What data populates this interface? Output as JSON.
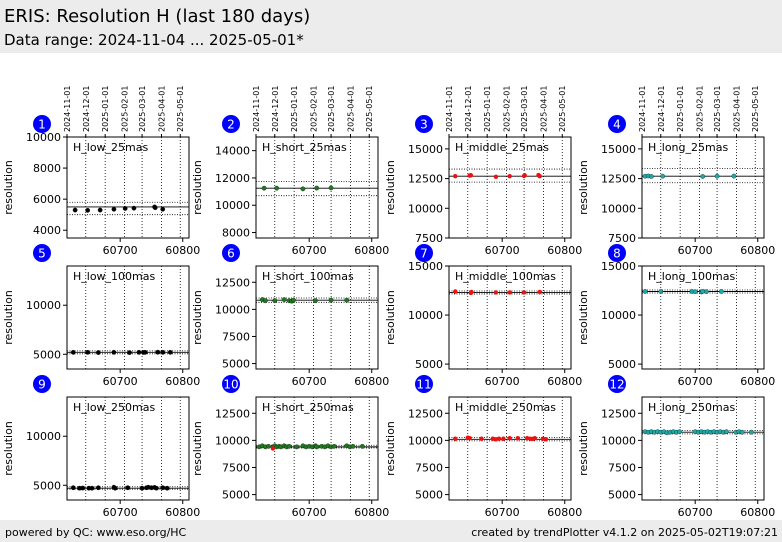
{
  "header": {
    "title": "ERIS: Resolution H (last 180 days)",
    "subtitle": "Data range: 2024-11-04 ... 2025-05-01*"
  },
  "footer": {
    "left": "powered by QC: www.eso.org/HC",
    "right": "created by trendPlotter v4.1.2 on 2025-05-02T19:07:21"
  },
  "colors": {
    "badge": "#0000ff",
    "black": "#000000",
    "green": "#1f7a1f",
    "red": "#ee1111",
    "teal": "#20a8a8"
  },
  "chart_data": {
    "type": "scatter",
    "shared_x": {
      "xlim": [
        60615,
        60810
      ],
      "xticks": [
        60700,
        60800
      ],
      "top_date_ticks": [
        "2024-11-01",
        "2024-12-01",
        "2025-01-01",
        "2025-02-01",
        "2025-03-01",
        "2025-04-01",
        "2025-05-01"
      ],
      "top_date_mjd": [
        60615,
        60645,
        60676,
        60707,
        60735,
        60766,
        60796
      ],
      "vlines": [
        60645,
        60676,
        60707,
        60735,
        60766,
        60796
      ]
    },
    "ylabel": "resolution",
    "panels": [
      {
        "id": "1",
        "label": "H_low_25mas",
        "ylim": [
          3500,
          10000
        ],
        "yticks": [
          4000,
          6000,
          8000,
          10000
        ],
        "median": 5500,
        "band": [
          5000,
          5800
        ],
        "series_color": "black",
        "points": [
          [
            60628,
            5300
          ],
          [
            60648,
            5280
          ],
          [
            60668,
            5300
          ],
          [
            60690,
            5350
          ],
          [
            60708,
            5400
          ],
          [
            60722,
            5420
          ],
          [
            60755,
            5500
          ],
          [
            60756,
            5450
          ],
          [
            60768,
            5350
          ]
        ],
        "outliers": []
      },
      {
        "id": "2",
        "label": "H_short_25mas",
        "ylim": [
          7600,
          15000
        ],
        "yticks": [
          8000,
          10000,
          12000,
          14000
        ],
        "median": 11250,
        "band": [
          10700,
          11750
        ],
        "series_color": "green",
        "points": [
          [
            60628,
            11250
          ],
          [
            60648,
            11250
          ],
          [
            60690,
            11200
          ],
          [
            60712,
            11260
          ],
          [
            60735,
            11270
          ]
        ],
        "outliers": []
      },
      {
        "id": "3",
        "label": "H_middle_25mas",
        "ylim": [
          7500,
          16000
        ],
        "yticks": [
          7500,
          10000,
          12500,
          15000
        ],
        "median": 12700,
        "band": [
          12200,
          13300
        ],
        "series_color": "black",
        "points": [],
        "outliers": [
          [
            60625,
            12700
          ],
          [
            60648,
            12750
          ],
          [
            60650,
            12780
          ],
          [
            60690,
            12650
          ],
          [
            60712,
            12700
          ],
          [
            60735,
            12720
          ],
          [
            60736,
            12780
          ],
          [
            60758,
            12800
          ],
          [
            60760,
            12700
          ]
        ]
      },
      {
        "id": "4",
        "label": "H_long_25mas",
        "ylim": [
          7500,
          16000
        ],
        "yticks": [
          7500,
          10000,
          12500,
          15000
        ],
        "median": 12700,
        "band": [
          12150,
          13350
        ],
        "series_color": "teal",
        "points": [
          [
            60620,
            12700
          ],
          [
            60625,
            12720
          ],
          [
            60630,
            12680
          ],
          [
            60648,
            12700
          ],
          [
            60712,
            12680
          ],
          [
            60735,
            12700
          ],
          [
            60762,
            12710
          ]
        ],
        "outliers": []
      },
      {
        "id": "5",
        "label": "H_low_100mas",
        "ylim": [
          3500,
          14000
        ],
        "yticks": [
          5000,
          10000
        ],
        "median": 5200,
        "band": [
          5050,
          5350
        ],
        "series_color": "black",
        "points": [
          [
            60625,
            5200
          ],
          [
            60648,
            5200
          ],
          [
            60665,
            5180
          ],
          [
            60690,
            5200
          ],
          [
            60715,
            5180
          ],
          [
            60730,
            5200
          ],
          [
            60737,
            5190
          ],
          [
            60740,
            5200
          ],
          [
            60760,
            5210
          ],
          [
            60768,
            5200
          ],
          [
            60780,
            5200
          ]
        ],
        "outliers": []
      },
      {
        "id": "6",
        "label": "H_short_100mas",
        "ylim": [
          4500,
          14000
        ],
        "yticks": [
          5000,
          7500,
          10000,
          12500
        ],
        "median": 10850,
        "band": [
          10650,
          11050
        ],
        "series_color": "green",
        "points": [
          [
            60625,
            10900
          ],
          [
            60630,
            10800
          ],
          [
            60645,
            10800
          ],
          [
            60660,
            10900
          ],
          [
            60668,
            10800
          ],
          [
            60672,
            10750
          ],
          [
            60675,
            10850
          ],
          [
            60710,
            10800
          ],
          [
            60735,
            10850
          ],
          [
            60760,
            10850
          ]
        ],
        "outliers": []
      },
      {
        "id": "7",
        "label": "H_middle_100mas",
        "ylim": [
          4500,
          15000
        ],
        "yticks": [
          5000,
          10000,
          15000
        ],
        "median": 12300,
        "band": [
          12150,
          12450
        ],
        "series_color": "black",
        "points": [],
        "outliers": [
          [
            60625,
            12400
          ],
          [
            60650,
            12250
          ],
          [
            60651,
            12350
          ],
          [
            60690,
            12300
          ],
          [
            60712,
            12300
          ],
          [
            60735,
            12300
          ],
          [
            60760,
            12350
          ]
        ]
      },
      {
        "id": "8",
        "label": "H_long_100mas",
        "ylim": [
          4500,
          15000
        ],
        "yticks": [
          5000,
          10000,
          15000
        ],
        "median": 12400,
        "band": [
          12250,
          12550
        ],
        "series_color": "teal",
        "points": [
          [
            60620,
            12400
          ],
          [
            60645,
            12400
          ],
          [
            60695,
            12400
          ],
          [
            60700,
            12380
          ],
          [
            60710,
            12350
          ],
          [
            60712,
            12420
          ],
          [
            60718,
            12380
          ],
          [
            60742,
            12400
          ]
        ],
        "outliers": []
      },
      {
        "id": "9",
        "label": "H_low_250mas",
        "ylim": [
          3500,
          14000
        ],
        "yticks": [
          5000,
          10000
        ],
        "median": 4700,
        "band": [
          4600,
          4850
        ],
        "series_color": "black",
        "points": [
          [
            60625,
            4750
          ],
          [
            60635,
            4700
          ],
          [
            60640,
            4720
          ],
          [
            60650,
            4700
          ],
          [
            60655,
            4700
          ],
          [
            60665,
            4750
          ],
          [
            60690,
            4800
          ],
          [
            60692,
            4700
          ],
          [
            60712,
            4750
          ],
          [
            60735,
            4700
          ],
          [
            60742,
            4750
          ],
          [
            60745,
            4800
          ],
          [
            60750,
            4750
          ],
          [
            60755,
            4780
          ],
          [
            60758,
            4700
          ],
          [
            60768,
            4750
          ],
          [
            60775,
            4700
          ]
        ],
        "outliers": []
      },
      {
        "id": "10",
        "label": "H_short_250mas",
        "ylim": [
          4500,
          14000
        ],
        "yticks": [
          5000,
          7500,
          10000,
          12500
        ],
        "median": 9400,
        "band": [
          9300,
          9550
        ],
        "series_color": "green",
        "points": [
          [
            60620,
            9400
          ],
          [
            60625,
            9500
          ],
          [
            60630,
            9400
          ],
          [
            60635,
            9450
          ],
          [
            60642,
            9400
          ],
          [
            60645,
            9500
          ],
          [
            60648,
            9400
          ],
          [
            60652,
            9450
          ],
          [
            60655,
            9400
          ],
          [
            60660,
            9500
          ],
          [
            60664,
            9400
          ],
          [
            60668,
            9450
          ],
          [
            60680,
            9400
          ],
          [
            60690,
            9500
          ],
          [
            60695,
            9400
          ],
          [
            60700,
            9450
          ],
          [
            60705,
            9400
          ],
          [
            60710,
            9500
          ],
          [
            60712,
            9400
          ],
          [
            60720,
            9450
          ],
          [
            60725,
            9400
          ],
          [
            60730,
            9500
          ],
          [
            60735,
            9400
          ],
          [
            60740,
            9450
          ],
          [
            60760,
            9500
          ],
          [
            60765,
            9400
          ],
          [
            60770,
            9450
          ],
          [
            60785,
            9450
          ]
        ],
        "outliers": [
          [
            60642,
            9250
          ]
        ]
      },
      {
        "id": "11",
        "label": "H_middle_250mas",
        "ylim": [
          4500,
          14000
        ],
        "yticks": [
          5000,
          7500,
          10000,
          12500
        ],
        "median": 10100,
        "band": [
          9950,
          10250
        ],
        "series_color": "black",
        "points": [],
        "outliers": [
          [
            60625,
            10150
          ],
          [
            60645,
            10250
          ],
          [
            60648,
            10200
          ],
          [
            60667,
            10150
          ],
          [
            60685,
            10150
          ],
          [
            60690,
            10100
          ],
          [
            60695,
            10150
          ],
          [
            60702,
            10150
          ],
          [
            60712,
            10200
          ],
          [
            60725,
            10200
          ],
          [
            60740,
            10200
          ],
          [
            60745,
            10150
          ],
          [
            60750,
            10150
          ],
          [
            60752,
            10200
          ],
          [
            60765,
            10150
          ],
          [
            60770,
            10100
          ]
        ]
      },
      {
        "id": "12",
        "label": "H_long_250mas",
        "ylim": [
          4500,
          14000
        ],
        "yticks": [
          5000,
          7500,
          10000,
          12500
        ],
        "median": 10750,
        "band": [
          10600,
          10900
        ],
        "series_color": "teal",
        "points": [
          [
            60620,
            10800
          ],
          [
            60625,
            10750
          ],
          [
            60630,
            10800
          ],
          [
            60635,
            10750
          ],
          [
            60640,
            10800
          ],
          [
            60645,
            10750
          ],
          [
            60650,
            10800
          ],
          [
            60655,
            10700
          ],
          [
            60660,
            10750
          ],
          [
            60665,
            10800
          ],
          [
            60670,
            10750
          ],
          [
            60675,
            10800
          ],
          [
            60700,
            10800
          ],
          [
            60705,
            10750
          ],
          [
            60710,
            10800
          ],
          [
            60715,
            10750
          ],
          [
            60720,
            10800
          ],
          [
            60725,
            10750
          ],
          [
            60730,
            10800
          ],
          [
            60735,
            10750
          ],
          [
            60740,
            10800
          ],
          [
            60745,
            10750
          ],
          [
            60750,
            10800
          ],
          [
            60765,
            10750
          ],
          [
            60770,
            10800
          ],
          [
            60775,
            10750
          ],
          [
            60790,
            10750
          ]
        ],
        "outliers": []
      }
    ]
  }
}
